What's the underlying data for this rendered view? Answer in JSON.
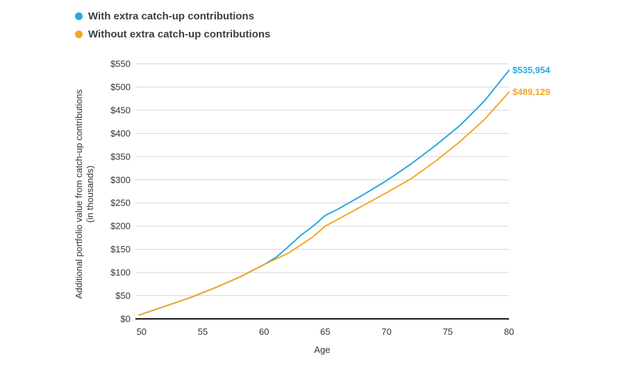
{
  "chart_data": {
    "type": "line",
    "title": "",
    "xlabel": "Age",
    "ylabel": "Additional portfolio value from catch-up contributions",
    "ylabel_sub": "(in thousands)",
    "xlim": [
      49.5,
      80
    ],
    "ylim": [
      0,
      550
    ],
    "xticks": [
      50,
      55,
      60,
      65,
      70,
      75,
      80
    ],
    "yticks": [
      0,
      50,
      100,
      150,
      200,
      250,
      300,
      350,
      400,
      450,
      500,
      550
    ],
    "ytick_labels": [
      "$0",
      "$50",
      "$100",
      "$150",
      "$200",
      "$250",
      "$300",
      "$350",
      "$400",
      "$450",
      "$500",
      "$550"
    ],
    "legend_position": "top-left",
    "grid": true,
    "series": [
      {
        "name": "With extra catch-up contributions",
        "color": "#27a8e0",
        "end_label": "$535,954",
        "x": [
          49.8,
          52,
          54,
          56,
          58,
          60,
          61,
          62,
          63,
          64,
          65,
          66,
          68,
          70,
          72,
          74,
          76,
          78,
          80
        ],
        "y": [
          8,
          28,
          46,
          67,
          90,
          117,
          133,
          156,
          180,
          200,
          223,
          236,
          266,
          298,
          334,
          374,
          417,
          470,
          536
        ]
      },
      {
        "name": "Without extra catch-up contributions",
        "color": "#f5a623",
        "end_label": "$489,129",
        "x": [
          49.8,
          52,
          54,
          56,
          58,
          60,
          62,
          64,
          65,
          66,
          68,
          70,
          72,
          74,
          76,
          78,
          80
        ],
        "y": [
          8,
          28,
          46,
          67,
          90,
          117,
          142,
          177,
          200,
          214,
          243,
          272,
          302,
          340,
          382,
          430,
          489
        ]
      }
    ]
  }
}
